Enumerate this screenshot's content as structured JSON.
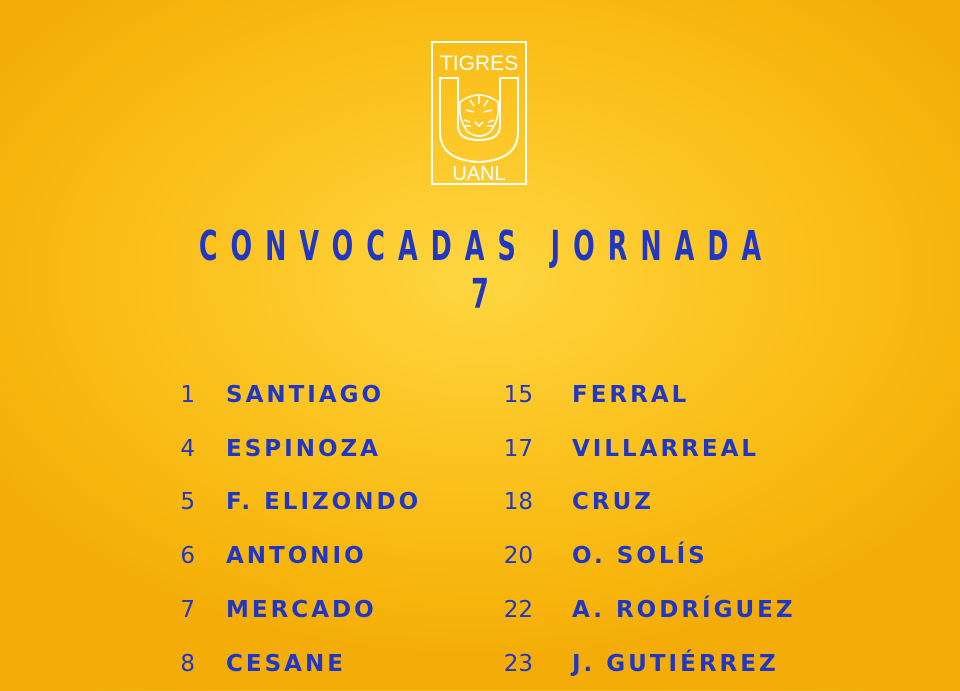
{
  "logo": {
    "top_text": "TIGRES",
    "bottom_text": "UANL"
  },
  "title": "CONVOCADAS JORNADA 7",
  "roster": {
    "left": [
      {
        "number": "1",
        "name": "SANTIAGO"
      },
      {
        "number": "4",
        "name": "ESPINOZA"
      },
      {
        "number": "5",
        "name": "F. ELIZONDO"
      },
      {
        "number": "6",
        "name": "ANTONIO"
      },
      {
        "number": "7",
        "name": "MERCADO"
      },
      {
        "number": "8",
        "name": "CESANE"
      }
    ],
    "right": [
      {
        "number": "15",
        "name": "FERRAL"
      },
      {
        "number": "17",
        "name": "VILLARREAL"
      },
      {
        "number": "18",
        "name": "CRUZ"
      },
      {
        "number": "20",
        "name": "O. SOLÍS"
      },
      {
        "number": "22",
        "name": "A. RODRÍGUEZ"
      },
      {
        "number": "23",
        "name": "J. GUTIÉRREZ"
      }
    ]
  },
  "colors": {
    "background": "#fcc422",
    "text": "#1f37c4",
    "logo": "#ffffff"
  }
}
